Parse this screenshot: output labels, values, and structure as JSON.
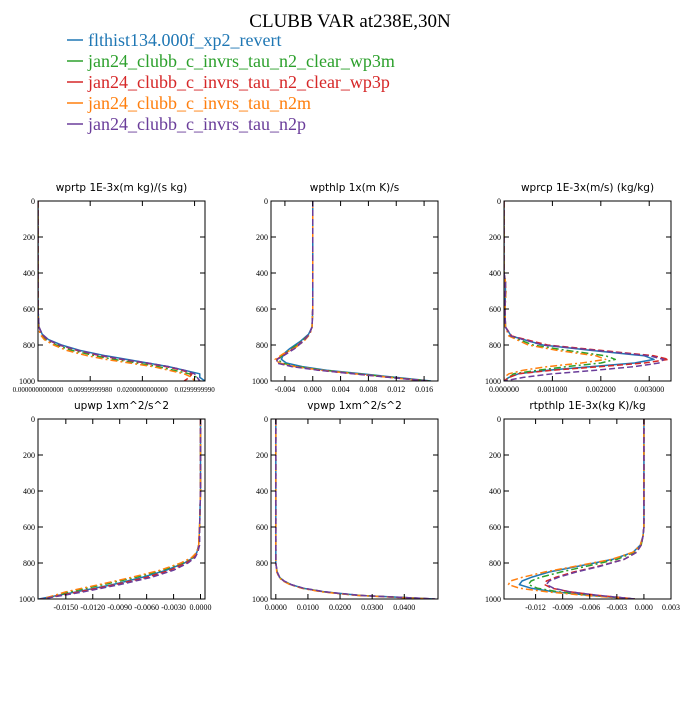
{
  "figure_title": "CLUBB VAR at238E,30N",
  "legend": [
    {
      "label": "flthist134.000f_xp2_revert",
      "color": "#1f77b4",
      "dash": "solid"
    },
    {
      "label": "jan24_clubb_c_invrs_tau_n2_clear_wp3m",
      "color": "#2ca02c",
      "dash": "dashdot"
    },
    {
      "label": "jan24_clubb_c_invrs_tau_n2_clear_wp3p",
      "color": "#d62728",
      "dash": "dashed"
    },
    {
      "label": "jan24_clubb_c_invrs_tau_n2m",
      "color": "#ff7f0e",
      "dash": "dashdot"
    },
    {
      "label": "jan24_clubb_c_invrs_tau_n2p",
      "color": "#6a3d9a",
      "dash": "dashed"
    }
  ],
  "chart_data": [
    {
      "type": "line",
      "title": "wprtp  1E-3x(m kg)/(s kg)",
      "xlim": [
        0.0,
        0.032
      ],
      "ylim": [
        1000,
        0
      ],
      "xticks": [
        "0.0000000000000",
        "0.00999999980",
        "0.0200000000000",
        "0.0299999990"
      ],
      "xtick_values": [
        0.0,
        0.01,
        0.02,
        0.03
      ],
      "yticks": [
        "0",
        "200",
        "400",
        "600",
        "800",
        "1000"
      ],
      "ytick_values": [
        0,
        200,
        400,
        600,
        800,
        1000
      ],
      "y": [
        0,
        200,
        400,
        600,
        700,
        740,
        770,
        800,
        830,
        860,
        880,
        900,
        920,
        940,
        960,
        980,
        1000
      ],
      "series": [
        {
          "name": "flthist134.000f_xp2_revert",
          "values": [
            0.0,
            0.0,
            0.0,
            0.0,
            0.0002,
            0.0008,
            0.002,
            0.0045,
            0.008,
            0.013,
            0.017,
            0.021,
            0.025,
            0.028,
            0.031,
            0.031,
            0.032
          ]
        },
        {
          "name": "jan24_clubb_c_invrs_tau_n2_clear_wp3m",
          "values": [
            0.0,
            0.0,
            0.0,
            0.0,
            0.0001,
            0.0005,
            0.0015,
            0.0035,
            0.0065,
            0.011,
            0.0145,
            0.019,
            0.023,
            0.026,
            0.029,
            0.0305,
            0.031
          ]
        },
        {
          "name": "jan24_clubb_c_invrs_tau_n2_clear_wp3p",
          "values": [
            0.0,
            0.0,
            0.0,
            0.0,
            0.0002,
            0.0007,
            0.0018,
            0.004,
            0.0075,
            0.012,
            0.016,
            0.0205,
            0.0245,
            0.0275,
            0.0295,
            0.029,
            0.028
          ]
        },
        {
          "name": "jan24_clubb_c_invrs_tau_n2m",
          "values": [
            0.0,
            0.0,
            0.0,
            0.0,
            0.0001,
            0.0004,
            0.0012,
            0.003,
            0.0055,
            0.0095,
            0.013,
            0.0175,
            0.022,
            0.025,
            0.028,
            0.0295,
            0.03
          ]
        },
        {
          "name": "jan24_clubb_c_invrs_tau_n2p",
          "values": [
            0.0,
            0.0,
            0.0,
            0.0,
            0.0002,
            0.0008,
            0.0019,
            0.0042,
            0.0078,
            0.0125,
            0.0165,
            0.021,
            0.025,
            0.028,
            0.03,
            0.0305,
            0.031
          ]
        }
      ]
    },
    {
      "type": "line",
      "title": "wpthlp  1x(m K)/s",
      "xlim": [
        -0.006,
        0.018
      ],
      "ylim": [
        1000,
        0
      ],
      "xticks": [
        "-0.004",
        "0.000",
        "0.004",
        "0.008",
        "0.012",
        "0.016"
      ],
      "xtick_values": [
        -0.004,
        0.0,
        0.004,
        0.008,
        0.012,
        0.016
      ],
      "yticks": [
        "0",
        "200",
        "400",
        "600",
        "800",
        "1000"
      ],
      "ytick_values": [
        0,
        200,
        400,
        600,
        800,
        1000
      ],
      "y": [
        0,
        200,
        400,
        600,
        700,
        740,
        780,
        820,
        850,
        880,
        900,
        920,
        940,
        960,
        980,
        1000
      ],
      "series": [
        {
          "name": "flthist134.000f_xp2_revert",
          "values": [
            0.0,
            0.0,
            0.0,
            0.0,
            -0.0001,
            -0.0006,
            -0.0018,
            -0.0033,
            -0.0042,
            -0.0045,
            -0.0038,
            -0.0015,
            0.002,
            0.007,
            0.012,
            0.017
          ]
        },
        {
          "name": "jan24_clubb_c_invrs_tau_n2_clear_wp3m",
          "values": [
            0.0,
            0.0,
            0.0,
            0.0,
            -0.0001,
            -0.0005,
            -0.0016,
            -0.003,
            -0.0042,
            -0.0049,
            -0.0045,
            -0.0022,
            0.0015,
            0.0065,
            0.0115,
            0.0168
          ]
        },
        {
          "name": "jan24_clubb_c_invrs_tau_n2_clear_wp3p",
          "values": [
            0.0,
            0.0,
            0.0,
            0.0,
            -0.0001,
            -0.0005,
            -0.0015,
            -0.0028,
            -0.004,
            -0.0052,
            -0.005,
            -0.0028,
            0.001,
            0.006,
            0.0112,
            0.0165
          ]
        },
        {
          "name": "jan24_clubb_c_invrs_tau_n2m",
          "values": [
            0.0,
            0.0,
            0.0,
            0.0,
            -0.0001,
            -0.0004,
            -0.0013,
            -0.0027,
            -0.0043,
            -0.0054,
            -0.0048,
            -0.0025,
            0.0012,
            0.006,
            0.011,
            0.0163
          ]
        },
        {
          "name": "jan24_clubb_c_invrs_tau_n2p",
          "values": [
            0.0,
            0.0,
            0.0,
            0.0,
            -0.0001,
            -0.0005,
            -0.0014,
            -0.0026,
            -0.0038,
            -0.0051,
            -0.0052,
            -0.003,
            0.0008,
            0.0058,
            0.011,
            0.0165
          ]
        }
      ]
    },
    {
      "type": "line",
      "title": "wprcp  1E-3x(m/s) (kg/kg)",
      "xlim": [
        0.0,
        0.00345
      ],
      "ylim": [
        1000,
        0
      ],
      "xticks": [
        "0.000000",
        "0.001000",
        "0.002000",
        "0.003000"
      ],
      "xtick_values": [
        0.0,
        0.001,
        0.002,
        0.003
      ],
      "yticks": [
        "0",
        "200",
        "400",
        "600",
        "800",
        "1000"
      ],
      "ytick_values": [
        0,
        200,
        400,
        600,
        800,
        1000
      ],
      "y": [
        0,
        200,
        400,
        450,
        500,
        600,
        700,
        750,
        800,
        830,
        860,
        880,
        900,
        920,
        940,
        960,
        980,
        1000
      ],
      "series": [
        {
          "name": "flthist134.000f_xp2_revert",
          "values": [
            0.0,
            0.0,
            0.0,
            3e-05,
            3e-05,
            2e-05,
            3e-05,
            0.00015,
            0.0008,
            0.0018,
            0.0029,
            0.0031,
            0.0027,
            0.0018,
            0.0009,
            0.0003,
            0.0001,
            0.0
          ]
        },
        {
          "name": "jan24_clubb_c_invrs_tau_n2_clear_wp3m",
          "values": [
            0.0,
            0.0,
            0.0,
            3e-05,
            4e-05,
            2e-05,
            3e-05,
            0.00012,
            0.0006,
            0.0013,
            0.0021,
            0.0023,
            0.002,
            0.0013,
            0.0007,
            0.0002,
            0.0001,
            0.0
          ]
        },
        {
          "name": "jan24_clubb_c_invrs_tau_n2_clear_wp3p",
          "values": [
            0.0,
            0.0,
            0.0,
            3e-05,
            3e-05,
            2e-05,
            3e-05,
            0.00016,
            0.0009,
            0.002,
            0.0031,
            0.0034,
            0.0029,
            0.002,
            0.001,
            0.0003,
            0.0001,
            0.0
          ]
        },
        {
          "name": "jan24_clubb_c_invrs_tau_n2m",
          "values": [
            0.0,
            0.0,
            0.0,
            3e-05,
            4e-05,
            2e-05,
            3e-05,
            0.0001,
            0.0005,
            0.0011,
            0.0019,
            0.0021,
            0.0016,
            0.0009,
            0.0004,
            0.0001,
            0.0,
            0.0
          ]
        },
        {
          "name": "jan24_clubb_c_invrs_tau_n2p",
          "values": [
            0.0,
            0.0,
            0.0,
            3e-05,
            3e-05,
            2e-05,
            3e-05,
            0.00014,
            0.0008,
            0.0019,
            0.003,
            0.0033,
            0.0032,
            0.0027,
            0.0019,
            0.001,
            0.0004,
            0.0
          ]
        }
      ]
    },
    {
      "type": "line",
      "title": "upwp  1xm^2/s^2",
      "xlim": [
        -0.0181,
        0.0005
      ],
      "ylim": [
        1000,
        0
      ],
      "xticks": [
        "-0.0150",
        "-0.0120",
        "-0.0090",
        "-0.0060",
        "-0.0030",
        "0.0000"
      ],
      "xtick_values": [
        -0.015,
        -0.012,
        -0.009,
        -0.006,
        -0.003,
        0.0
      ],
      "yticks": [
        "0",
        "200",
        "400",
        "600",
        "800",
        "1000"
      ],
      "ytick_values": [
        0,
        200,
        400,
        600,
        800,
        1000
      ],
      "y": [
        0,
        200,
        400,
        600,
        700,
        740,
        770,
        800,
        840,
        880,
        920,
        960,
        1000
      ],
      "series": [
        {
          "name": "flthist134.000f_xp2_revert",
          "values": [
            0.0,
            0.0,
            0.0,
            -0.0001,
            -0.0002,
            -0.0004,
            -0.0008,
            -0.0018,
            -0.0038,
            -0.0065,
            -0.0098,
            -0.0138,
            -0.018
          ]
        },
        {
          "name": "jan24_clubb_c_invrs_tau_n2_clear_wp3m",
          "values": [
            0.0,
            0.0,
            0.0,
            -0.0001,
            -0.0002,
            -0.0004,
            -0.0009,
            -0.002,
            -0.0042,
            -0.0072,
            -0.0108,
            -0.0145,
            -0.0175
          ]
        },
        {
          "name": "jan24_clubb_c_invrs_tau_n2_clear_wp3p",
          "values": [
            0.0,
            0.0,
            0.0,
            -0.0001,
            -0.0002,
            -0.0003,
            -0.0007,
            -0.0016,
            -0.0034,
            -0.006,
            -0.0095,
            -0.0135,
            -0.0178
          ]
        },
        {
          "name": "jan24_clubb_c_invrs_tau_n2m",
          "values": [
            0.0,
            0.0,
            0.0,
            -0.0001,
            -0.0002,
            -0.0004,
            -0.001,
            -0.0022,
            -0.0045,
            -0.0077,
            -0.0113,
            -0.015,
            -0.0176
          ]
        },
        {
          "name": "jan24_clubb_c_invrs_tau_n2p",
          "values": [
            0.0,
            0.0,
            0.0,
            -0.0001,
            -0.0001,
            -0.0003,
            -0.0006,
            -0.0014,
            -0.003,
            -0.0055,
            -0.009,
            -0.013,
            -0.0177
          ]
        }
      ]
    },
    {
      "type": "line",
      "title": "vpwp  1xm^2/s^2",
      "xlim": [
        -0.0015,
        0.0505
      ],
      "ylim": [
        1000,
        0
      ],
      "xticks": [
        "0.0000",
        "0.0100",
        "0.0200",
        "0.0300",
        "0.0400"
      ],
      "xtick_values": [
        0.0,
        0.01,
        0.02,
        0.03,
        0.04
      ],
      "yticks": [
        "0",
        "200",
        "400",
        "600",
        "800",
        "1000"
      ],
      "ytick_values": [
        0,
        200,
        400,
        600,
        800,
        1000
      ],
      "y": [
        0,
        200,
        400,
        600,
        800,
        850,
        880,
        900,
        920,
        940,
        960,
        980,
        1000
      ],
      "series": [
        {
          "name": "flthist134.000f_xp2_revert",
          "values": [
            0.0,
            0.0,
            0.0,
            0.0,
            0.0,
            0.0004,
            0.0012,
            0.0025,
            0.0048,
            0.0085,
            0.015,
            0.026,
            0.0495
          ]
        },
        {
          "name": "jan24_clubb_c_invrs_tau_n2_clear_wp3m",
          "values": [
            0.0,
            0.0,
            0.0,
            0.0,
            0.0,
            0.0004,
            0.0011,
            0.0024,
            0.0046,
            0.0082,
            0.0145,
            0.0255,
            0.049
          ]
        },
        {
          "name": "jan24_clubb_c_invrs_tau_n2_clear_wp3p",
          "values": [
            0.0,
            0.0,
            0.0,
            0.0,
            0.0,
            0.0004,
            0.0012,
            0.0025,
            0.0047,
            0.0084,
            0.0148,
            0.0258,
            0.0493
          ]
        },
        {
          "name": "jan24_clubb_c_invrs_tau_n2m",
          "values": [
            0.0,
            0.0,
            0.0,
            0.0,
            0.0,
            0.0003,
            0.001,
            0.0022,
            0.0044,
            0.008,
            0.0142,
            0.025,
            0.0485
          ]
        },
        {
          "name": "jan24_clubb_c_invrs_tau_n2p",
          "values": [
            0.0,
            0.0,
            0.0,
            0.0,
            0.0,
            0.0004,
            0.0012,
            0.0026,
            0.0048,
            0.0086,
            0.0152,
            0.0262,
            0.0497
          ]
        }
      ]
    },
    {
      "type": "line",
      "title": "rtpthlp  1E-3x(kg K)/kg",
      "xlim": [
        -0.0155,
        0.003
      ],
      "ylim": [
        1000,
        0
      ],
      "xticks": [
        "-0.012",
        "-0.009",
        "-0.006",
        "-0.003",
        "0.000",
        "0.003"
      ],
      "xtick_values": [
        -0.012,
        -0.009,
        -0.006,
        -0.003,
        0.0,
        0.003
      ],
      "yticks": [
        "0",
        "200",
        "400",
        "600",
        "800",
        "1000"
      ],
      "ytick_values": [
        0,
        200,
        400,
        600,
        800,
        1000
      ],
      "y": [
        0,
        200,
        400,
        600,
        650,
        700,
        740,
        780,
        820,
        850,
        880,
        900,
        920,
        940,
        960,
        980,
        1000
      ],
      "series": [
        {
          "name": "flthist134.000f_xp2_revert",
          "values": [
            0.0,
            0.0,
            0.0,
            0.0,
            -0.0001,
            -0.0004,
            -0.0012,
            -0.0035,
            -0.0075,
            -0.0105,
            -0.0125,
            -0.0135,
            -0.0138,
            -0.0125,
            -0.01,
            -0.006,
            -0.001
          ]
        },
        {
          "name": "jan24_clubb_c_invrs_tau_n2_clear_wp3m",
          "values": [
            0.0,
            0.0,
            0.0,
            0.0,
            -0.0001,
            -0.0003,
            -0.001,
            -0.003,
            -0.0065,
            -0.0092,
            -0.0115,
            -0.0125,
            -0.0128,
            -0.0118,
            -0.0095,
            -0.0055,
            -0.001
          ]
        },
        {
          "name": "jan24_clubb_c_invrs_tau_n2_clear_wp3p",
          "values": [
            0.0,
            0.0,
            0.0,
            0.0,
            -0.0001,
            -0.0003,
            -0.0008,
            -0.0022,
            -0.0052,
            -0.0078,
            -0.0098,
            -0.0108,
            -0.011,
            -0.0102,
            -0.0082,
            -0.005,
            -0.001
          ]
        },
        {
          "name": "jan24_clubb_c_invrs_tau_n2m",
          "values": [
            0.0,
            0.0,
            0.0,
            0.0,
            -0.0001,
            -0.0004,
            -0.0012,
            -0.0036,
            -0.0078,
            -0.011,
            -0.0135,
            -0.0148,
            -0.015,
            -0.0138,
            -0.0108,
            -0.0065,
            -0.0012
          ]
        },
        {
          "name": "jan24_clubb_c_invrs_tau_n2p",
          "values": [
            0.0,
            0.0,
            0.0,
            0.0,
            -0.0001,
            -0.0003,
            -0.0008,
            -0.0022,
            -0.005,
            -0.0075,
            -0.0095,
            -0.0105,
            -0.0108,
            -0.01,
            -0.0082,
            -0.005,
            -0.001
          ]
        }
      ]
    }
  ]
}
